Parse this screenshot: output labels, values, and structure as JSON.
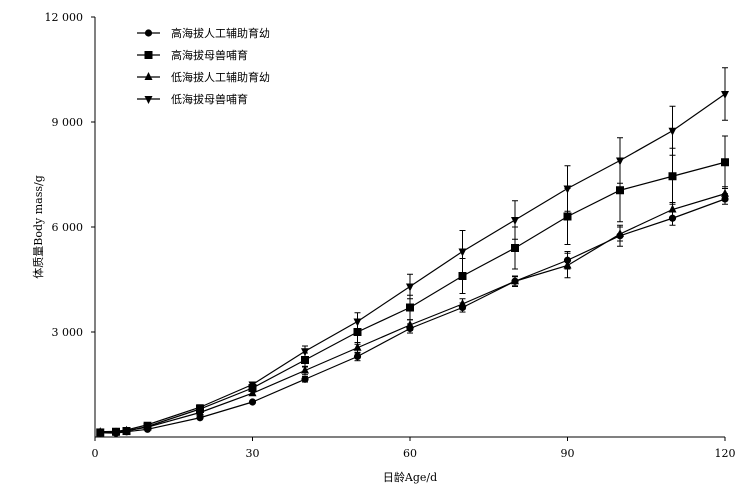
{
  "chart_data": {
    "type": "line",
    "xlabel": "日龄Age/d",
    "ylabel": "体质量Body mass/g",
    "xlim": [
      0,
      120
    ],
    "ylim": [
      0,
      12000
    ],
    "xticks": [
      0,
      30,
      60,
      90,
      120
    ],
    "xtick_labels": [
      "0",
      "30",
      "60",
      "90",
      "120"
    ],
    "yticks": [
      3000,
      6000,
      9000,
      12000
    ],
    "ytick_labels": [
      "3 000",
      "6 000",
      "9 000",
      "12 000"
    ],
    "grid": false,
    "legend_position": "top-left",
    "series": [
      {
        "name": "高海拔人工辅助育幼",
        "marker": "circle",
        "x": [
          1,
          4,
          6,
          10,
          20,
          30,
          40,
          50,
          60,
          70,
          80,
          90,
          100,
          110,
          120
        ],
        "y": [
          120,
          110,
          150,
          220,
          550,
          1000,
          1650,
          2300,
          3100,
          3700,
          4450,
          5050,
          5750,
          6250,
          6800
        ],
        "err": [
          0,
          0,
          0,
          0,
          0,
          0,
          80,
          120,
          130,
          130,
          130,
          250,
          300,
          200,
          150
        ]
      },
      {
        "name": "高海拔母兽哺育",
        "marker": "square",
        "x": [
          1,
          4,
          6,
          10,
          20,
          30,
          40,
          50,
          60,
          70,
          80,
          90,
          100,
          110,
          120
        ],
        "y": [
          130,
          150,
          170,
          300,
          800,
          1400,
          2200,
          3000,
          3700,
          4600,
          5400,
          6300,
          7050,
          7450,
          7850
        ],
        "err": [
          0,
          0,
          0,
          0,
          0,
          100,
          200,
          350,
          350,
          500,
          600,
          800,
          900,
          800,
          750
        ]
      },
      {
        "name": "低海拔人工辅助育幼",
        "marker": "triangle-up",
        "x": [
          1,
          4,
          6,
          10,
          20,
          30,
          40,
          50,
          60,
          70,
          80,
          90,
          100,
          110,
          120
        ],
        "y": [
          140,
          130,
          180,
          280,
          700,
          1250,
          1900,
          2550,
          3200,
          3800,
          4450,
          4900,
          5800,
          6500,
          6950
        ],
        "err": [
          0,
          0,
          0,
          0,
          0,
          0,
          120,
          150,
          150,
          150,
          150,
          350,
          200,
          200,
          200
        ]
      },
      {
        "name": "低海拔母兽哺育",
        "marker": "triangle-down",
        "x": [
          1,
          4,
          6,
          10,
          20,
          30,
          40,
          50,
          60,
          70,
          80,
          90,
          100,
          110,
          120
        ],
        "y": [
          150,
          160,
          200,
          350,
          850,
          1500,
          2450,
          3300,
          4300,
          5300,
          6200,
          7100,
          7900,
          8750,
          9800
        ],
        "err": [
          0,
          0,
          0,
          0,
          0,
          0,
          150,
          250,
          350,
          600,
          550,
          650,
          650,
          700,
          750
        ]
      }
    ]
  }
}
